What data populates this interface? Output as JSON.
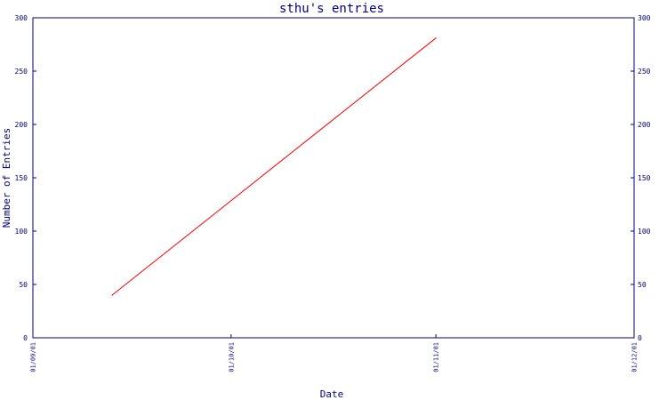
{
  "chart_data": {
    "type": "line",
    "title": "sthu's entries",
    "xlabel": "Date",
    "ylabel": "Number of Entries",
    "x_ticks": [
      "01/09/01",
      "01/10/01",
      "01/11/01",
      "01/12/01"
    ],
    "x_range": [
      "01/09/01",
      "01/12/01"
    ],
    "ylim": [
      0,
      300
    ],
    "y_ticks": [
      0,
      50,
      100,
      150,
      200,
      250,
      300
    ],
    "y_axis_mirrored": "right",
    "grid": false,
    "series": [
      {
        "points": [
          {
            "x": "01/09/13",
            "y": 40
          },
          {
            "x": "01/11/01",
            "y": 281
          }
        ],
        "color": "#ff0000"
      }
    ],
    "colors": {
      "axis": "#000080",
      "text": "#000080",
      "series": "#ff0000"
    }
  }
}
